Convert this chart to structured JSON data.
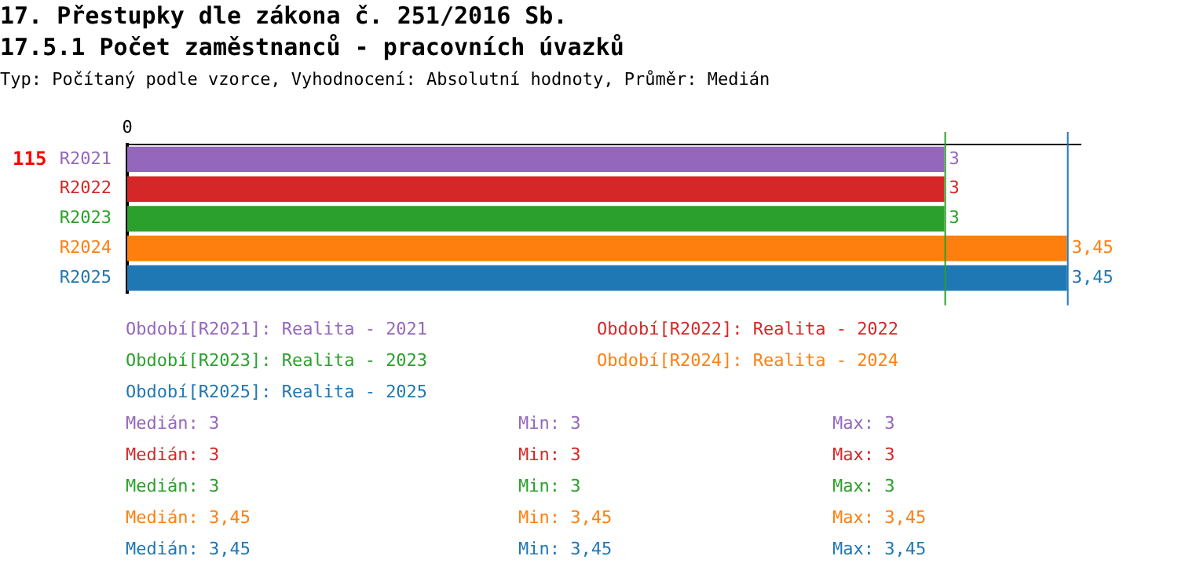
{
  "chart_data": {
    "type": "bar",
    "orientation": "horizontal",
    "title": "17. Přestupky dle zákona č. 251/2016 Sb.",
    "subtitle": "17.5.1 Počet zaměstnanců - pracovních úvazků",
    "categories": [
      "R2021",
      "R2022",
      "R2023",
      "R2024",
      "R2025"
    ],
    "values": [
      3,
      3,
      3,
      3.45,
      3.45
    ],
    "colors": [
      "#9467bd",
      "#d62728",
      "#2ca02c",
      "#ff7f0e",
      "#1f77b4"
    ],
    "value_labels": [
      "3",
      "3",
      "3",
      "3,45",
      "3,45"
    ],
    "ref_lines": [
      {
        "axis": "x",
        "value": 3,
        "color": "#2ca02c"
      },
      {
        "axis": "x",
        "value": 3.45,
        "color": "#1f77b4"
      }
    ],
    "annotations": [
      "Typ: Počítaný podle vzorce, Vyhodnocení: Absolutní hodnoty, Průměr: Medián",
      "115",
      "0",
      "Období[R2021]: Realita - 2021",
      "Období[R2022]: Realita - 2022",
      "Období[R2023]: Realita - 2023",
      "Období[R2024]: Realita - 2024",
      "Období[R2025]: Realita - 2025",
      "Medián: 3",
      "Min: 3",
      "Max: 3",
      "Medián: 3",
      "Min: 3",
      "Max: 3",
      "Medián: 3",
      "Min: 3",
      "Max: 3",
      "Medián: 3,45",
      "Min: 3,45",
      "Max: 3,45",
      "Medián: 3,45",
      "Min: 3,45",
      "Max: 3,45"
    ]
  }
}
